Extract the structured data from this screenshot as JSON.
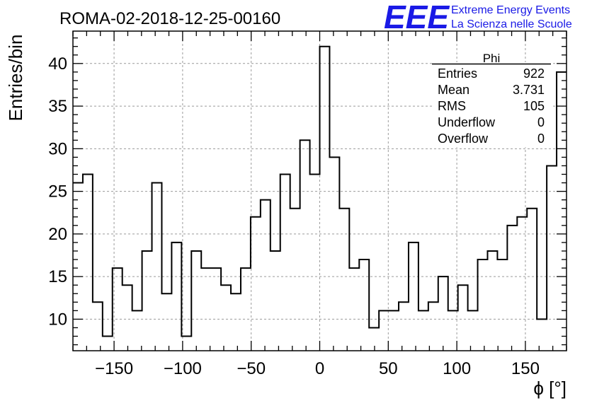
{
  "header": {
    "run_title": "ROMA-02-2018-12-25-00160",
    "logo_text": "EEE",
    "logo_line1": "Extreme Energy Events",
    "logo_line2": "La Scienza nelle Scuole",
    "logo_color": "#1a1ae6"
  },
  "stats_box": {
    "title": "Phi",
    "rows": [
      {
        "label": "Entries",
        "value": "922"
      },
      {
        "label": "Mean",
        "value": "3.731"
      },
      {
        "label": "RMS",
        "value": "105"
      },
      {
        "label": "Underflow",
        "value": "0"
      },
      {
        "label": "Overflow",
        "value": "0"
      }
    ]
  },
  "chart_data": {
    "type": "bar",
    "histogram": true,
    "xlabel": "ϕ [°]",
    "ylabel": "Entries/bin",
    "xlim": [
      -180,
      180
    ],
    "ylim": [
      6.3,
      43.8
    ],
    "grid": true,
    "x_ticks": [
      -150,
      -100,
      -50,
      0,
      50,
      100,
      150
    ],
    "y_ticks": [
      10,
      15,
      20,
      25,
      30,
      35,
      40
    ],
    "bin_edges_start": -180,
    "bin_width": 7.2,
    "values": [
      26,
      27,
      12,
      8,
      16,
      14,
      11,
      18,
      26,
      13,
      19,
      8,
      18,
      16,
      16,
      14,
      13,
      16,
      22,
      24,
      18,
      27,
      23,
      31,
      27,
      42,
      29,
      23,
      16,
      17,
      9,
      11,
      11,
      12,
      19,
      11,
      12,
      15,
      11,
      14,
      11,
      17,
      18,
      17,
      21,
      22,
      23,
      10,
      28,
      39
    ]
  }
}
